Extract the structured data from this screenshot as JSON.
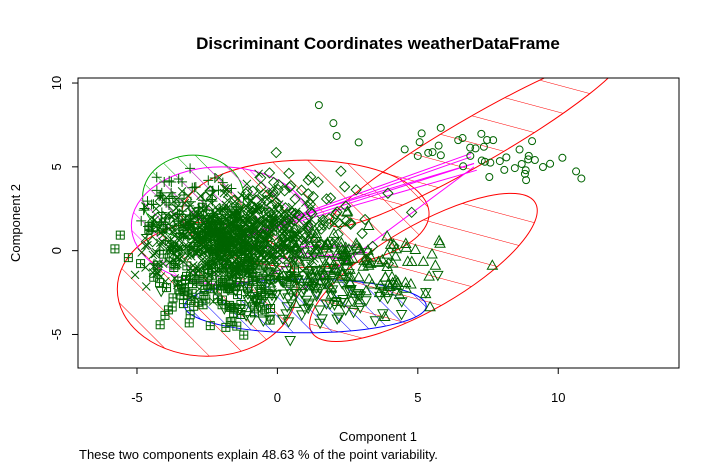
{
  "chart_data": {
    "type": "scatter",
    "title": "Discriminant Coordinates weatherDataFrame",
    "xlabel": "Component 1",
    "ylabel": "Component 2",
    "xlim": [
      -7.1,
      14.3
    ],
    "ylim": [
      -7.0,
      10.3
    ],
    "xticks": [
      -5,
      0,
      5,
      10
    ],
    "yticks": [
      -5,
      0,
      5,
      10
    ],
    "caption": "These two components explain 48.63 % of the point variability.",
    "grid": false,
    "point_color": "#006400",
    "clusters": [
      {
        "shape": "circle",
        "border": "#ff0000",
        "cx": 7.1,
        "cy": 6.6,
        "rx": 6.0,
        "ry": 1.4,
        "angle_deg": -30,
        "center": [
          6.8,
          6.0
        ],
        "count": 45,
        "spread": [
          2.2,
          0.9,
          -0.57
        ]
      },
      {
        "shape": "triangle",
        "border": "#ff0000",
        "cx": 5.2,
        "cy": -1.0,
        "rx": 4.6,
        "ry": 2.5,
        "angle_deg": -30,
        "center": [
          2.5,
          -0.6
        ],
        "count": 150,
        "spread": [
          1.6,
          1.2,
          -0.3
        ]
      },
      {
        "shape": "diamond",
        "border": "#ff0000",
        "cx": 1.0,
        "cy": 2.2,
        "rx": 4.4,
        "ry": 3.2,
        "angle_deg": 0,
        "center": [
          0.2,
          1.8
        ],
        "count": 160,
        "spread": [
          1.8,
          1.5,
          0.0
        ]
      },
      {
        "shape": "square-cross",
        "border": "#ff0000",
        "cx": -2.5,
        "cy": -2.3,
        "rx": 3.2,
        "ry": 4.0,
        "angle_deg": 0,
        "center": [
          -2.0,
          -1.6
        ],
        "count": 150,
        "spread": [
          1.4,
          1.6,
          0.0
        ]
      },
      {
        "shape": "triangle-down",
        "border": "#0000ff",
        "cx": 1.0,
        "cy": -3.3,
        "rx": 4.3,
        "ry": 1.6,
        "angle_deg": 0,
        "center": [
          0.8,
          -2.4
        ],
        "count": 140,
        "spread": [
          1.7,
          0.9,
          0.0
        ]
      },
      {
        "shape": "plus",
        "border": "#00aa00",
        "cx": -3.0,
        "cy": 3.2,
        "rx": 1.8,
        "ry": 2.5,
        "angle_deg": 0,
        "center": [
          -3.0,
          2.2
        ],
        "count": 120,
        "spread": [
          0.9,
          1.2,
          0.0
        ]
      },
      {
        "shape": "cross",
        "border": "#ff00ff",
        "cx": -2.0,
        "cy": 1.5,
        "rx": 3.2,
        "ry": 3.5,
        "angle_deg": 0,
        "center": [
          -1.6,
          0.6
        ],
        "count": 700,
        "spread": [
          1.4,
          1.2,
          0.0
        ]
      }
    ],
    "connectors": [
      {
        "from": [
          -1.6,
          0.6
        ],
        "to": [
          7.0,
          5.2
        ]
      },
      {
        "from": [
          -1.6,
          0.6
        ],
        "to": [
          7.1,
          4.8
        ]
      },
      {
        "from": [
          -1.6,
          0.6
        ],
        "to": [
          6.9,
          5.6
        ]
      },
      {
        "from": [
          -1.6,
          0.6
        ],
        "to": [
          2.5,
          -0.6
        ]
      },
      {
        "from": [
          -1.6,
          0.6
        ],
        "to": [
          0.2,
          1.8
        ]
      },
      {
        "from": [
          0.2,
          1.8
        ],
        "to": [
          7.0,
          5.2
        ]
      },
      {
        "from": [
          0.2,
          1.8
        ],
        "to": [
          6.9,
          5.8
        ]
      },
      {
        "from": [
          2.5,
          -0.6
        ],
        "to": [
          7.0,
          5.0
        ]
      },
      {
        "from": [
          0.8,
          -2.4
        ],
        "to": [
          2.5,
          -0.6
        ]
      },
      {
        "from": [
          -3.0,
          2.2
        ],
        "to": [
          -1.6,
          0.6
        ]
      },
      {
        "from": [
          0.0,
          0.2
        ],
        "to": [
          2.8,
          0.3
        ]
      },
      {
        "from": [
          0.0,
          -0.5
        ],
        "to": [
          3.2,
          -0.1
        ]
      }
    ]
  }
}
